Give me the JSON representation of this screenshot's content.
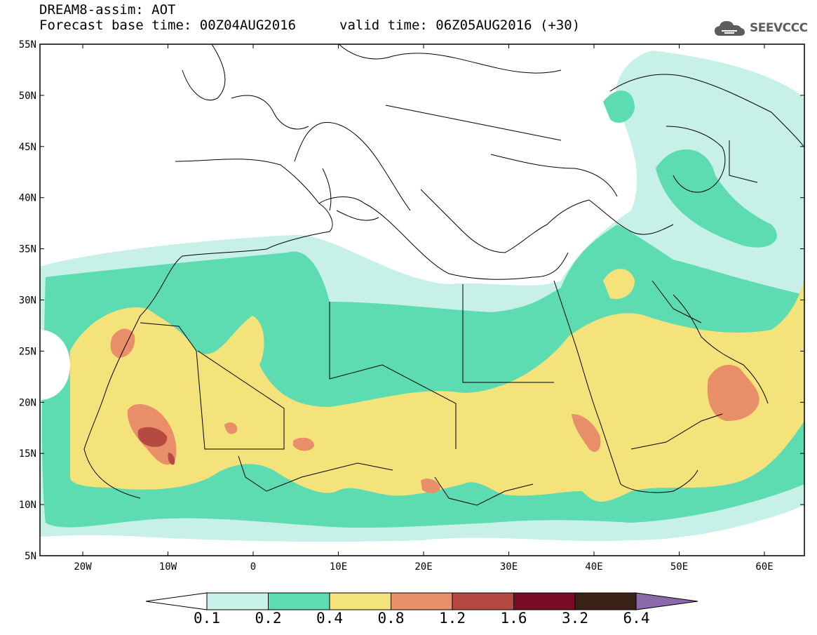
{
  "header": {
    "line1": "DREAM8-assim: AOT",
    "line2": "Forecast base time: 00Z04AUG2016",
    "valid": "valid time: 06Z05AUG2016 (+30)",
    "logo_text": "SEEVCCC"
  },
  "axes": {
    "lat_labels": [
      "55N",
      "50N",
      "45N",
      "40N",
      "35N",
      "30N",
      "25N",
      "20N",
      "15N",
      "10N",
      "5N"
    ],
    "lon_labels": [
      "20W",
      "10W",
      "0",
      "10E",
      "20E",
      "30E",
      "40E",
      "50E",
      "60E"
    ]
  },
  "legend": {
    "thresholds": [
      "0.1",
      "0.2",
      "0.4",
      "0.8",
      "1.2",
      "1.6",
      "3.2",
      "6.4"
    ],
    "colors": [
      "#ffffff",
      "#c6f0e8",
      "#5cdcb0",
      "#f4e27a",
      "#e88e68",
      "#b54a42",
      "#7a0c25",
      "#3b2216",
      "#8a6aaa"
    ]
  },
  "colors": {
    "aot_01_02": "#c6f0e8",
    "aot_02_04": "#5cdcb0",
    "aot_04_08": "#f4e27a",
    "aot_08_12": "#e88e68",
    "aot_12_16": "#b54a42"
  }
}
